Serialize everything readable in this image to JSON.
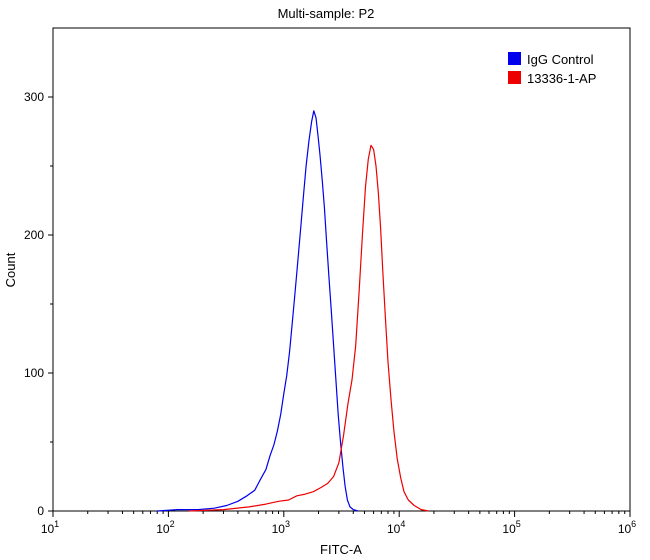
{
  "chart_data": {
    "type": "line",
    "title": "Multi-sample: P2",
    "xlabel": "FITC-A",
    "ylabel": "Count",
    "x_scale": "log",
    "x_range": [
      10,
      1000000
    ],
    "ylim": [
      0,
      350
    ],
    "x_ticks": [
      {
        "value": 10,
        "base": "10",
        "exp": "1"
      },
      {
        "value": 100,
        "base": "10",
        "exp": "2"
      },
      {
        "value": 1000,
        "base": "10",
        "exp": "3"
      },
      {
        "value": 10000,
        "base": "10",
        "exp": "4"
      },
      {
        "value": 100000,
        "base": "10",
        "exp": "5"
      },
      {
        "value": 1000000,
        "base": "10",
        "exp": "6"
      }
    ],
    "y_ticks": [
      0,
      100,
      200,
      300
    ],
    "grid": false,
    "legend_position": "top-right",
    "series": [
      {
        "name": "IgG Control",
        "color": "#0000ee",
        "points": [
          [
            80,
            0
          ],
          [
            120,
            1
          ],
          [
            180,
            1
          ],
          [
            250,
            2
          ],
          [
            320,
            4
          ],
          [
            400,
            7
          ],
          [
            480,
            11
          ],
          [
            560,
            15
          ],
          [
            620,
            22
          ],
          [
            700,
            30
          ],
          [
            760,
            40
          ],
          [
            820,
            48
          ],
          [
            880,
            58
          ],
          [
            940,
            70
          ],
          [
            1000,
            85
          ],
          [
            1060,
            98
          ],
          [
            1120,
            115
          ],
          [
            1180,
            135
          ],
          [
            1250,
            158
          ],
          [
            1320,
            180
          ],
          [
            1400,
            205
          ],
          [
            1480,
            228
          ],
          [
            1560,
            250
          ],
          [
            1650,
            268
          ],
          [
            1740,
            282
          ],
          [
            1820,
            290
          ],
          [
            1900,
            285
          ],
          [
            1980,
            272
          ],
          [
            2060,
            258
          ],
          [
            2150,
            240
          ],
          [
            2250,
            220
          ],
          [
            2350,
            195
          ],
          [
            2460,
            170
          ],
          [
            2580,
            145
          ],
          [
            2700,
            120
          ],
          [
            2830,
            95
          ],
          [
            2960,
            70
          ],
          [
            3100,
            50
          ],
          [
            3250,
            32
          ],
          [
            3400,
            18
          ],
          [
            3560,
            8
          ],
          [
            3750,
            3
          ],
          [
            4000,
            1
          ],
          [
            4400,
            0
          ]
        ]
      },
      {
        "name": "13336-1-AP",
        "color": "#ee0000",
        "points": [
          [
            150,
            0
          ],
          [
            300,
            1
          ],
          [
            500,
            3
          ],
          [
            700,
            5
          ],
          [
            900,
            7
          ],
          [
            1100,
            8
          ],
          [
            1300,
            11
          ],
          [
            1500,
            12
          ],
          [
            1800,
            14
          ],
          [
            2100,
            17
          ],
          [
            2400,
            20
          ],
          [
            2700,
            25
          ],
          [
            3000,
            35
          ],
          [
            3300,
            55
          ],
          [
            3600,
            78
          ],
          [
            3900,
            95
          ],
          [
            4200,
            120
          ],
          [
            4500,
            160
          ],
          [
            4800,
            200
          ],
          [
            5100,
            235
          ],
          [
            5400,
            255
          ],
          [
            5700,
            265
          ],
          [
            6000,
            262
          ],
          [
            6300,
            250
          ],
          [
            6600,
            230
          ],
          [
            6900,
            205
          ],
          [
            7200,
            175
          ],
          [
            7600,
            140
          ],
          [
            8000,
            108
          ],
          [
            8500,
            80
          ],
          [
            9000,
            58
          ],
          [
            9600,
            38
          ],
          [
            10300,
            24
          ],
          [
            11000,
            14
          ],
          [
            12000,
            8
          ],
          [
            13500,
            4
          ],
          [
            15500,
            1
          ],
          [
            18000,
            0
          ]
        ]
      }
    ]
  }
}
